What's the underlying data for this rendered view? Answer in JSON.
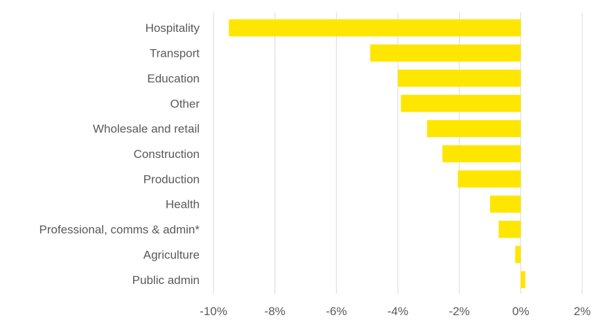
{
  "chart_data": {
    "type": "bar",
    "orientation": "horizontal",
    "title": "",
    "xlabel": "",
    "ylabel": "",
    "categories": [
      "Hospitality",
      "Transport",
      "Education",
      "Other",
      "Wholesale and retail",
      "Construction",
      "Production",
      "Health",
      "Professional, comms & admin*",
      "Agriculture",
      "Public admin"
    ],
    "values": [
      -9.5,
      -4.9,
      -4.0,
      -3.9,
      -3.05,
      -2.55,
      -2.05,
      -1.0,
      -0.72,
      -0.18,
      0.15
    ],
    "xlim": [
      -10,
      2
    ],
    "xticks": [
      -10,
      -8,
      -6,
      -4,
      -2,
      0,
      2
    ],
    "xtick_labels": [
      "-10%",
      "-8%",
      "-6%",
      "-4%",
      "-2%",
      "0%",
      "2%"
    ],
    "bar_color": "#ffe600",
    "grid": "vertical",
    "grid_color": "#d9d9d9",
    "text_color": "#595959",
    "legend": "none"
  }
}
